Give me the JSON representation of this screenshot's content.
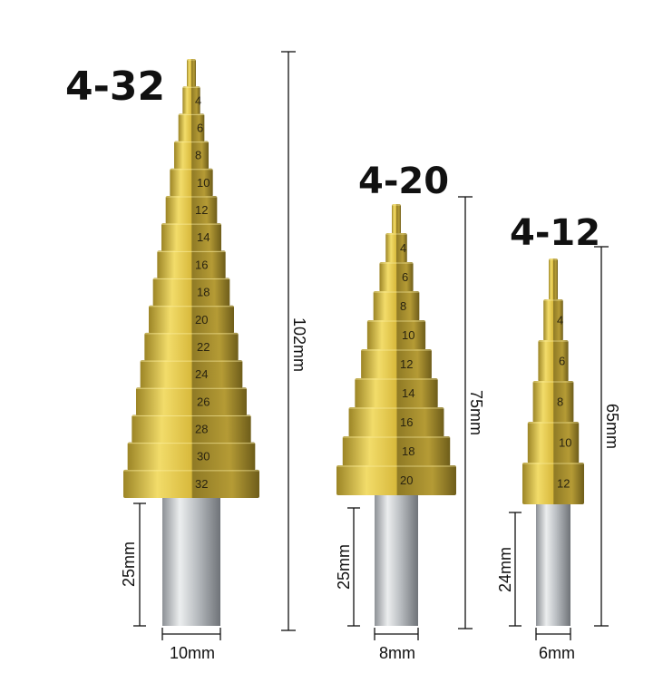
{
  "bits": [
    {
      "title": "4-32",
      "steps": [
        "4",
        "6",
        "8",
        "10",
        "12",
        "14",
        "16",
        "18",
        "20",
        "22",
        "24",
        "26",
        "28",
        "30",
        "32"
      ],
      "length": "102mm",
      "shank_length": "25mm",
      "shank_diameter": "10mm"
    },
    {
      "title": "4-20",
      "steps": [
        "4",
        "6",
        "8",
        "10",
        "12",
        "14",
        "16",
        "18",
        "20"
      ],
      "length": "75mm",
      "shank_length": "25mm",
      "shank_diameter": "8mm"
    },
    {
      "title": "4-12",
      "steps": [
        "4",
        "6",
        "8",
        "10",
        "12"
      ],
      "length": "65mm",
      "shank_length": "24mm",
      "shank_diameter": "6mm"
    }
  ],
  "colors": {
    "titanium_gold": "#d9b93a",
    "shadow_gold": "#8a7420",
    "shank_steel": "#b8bcc0",
    "annotation": "#111111"
  }
}
